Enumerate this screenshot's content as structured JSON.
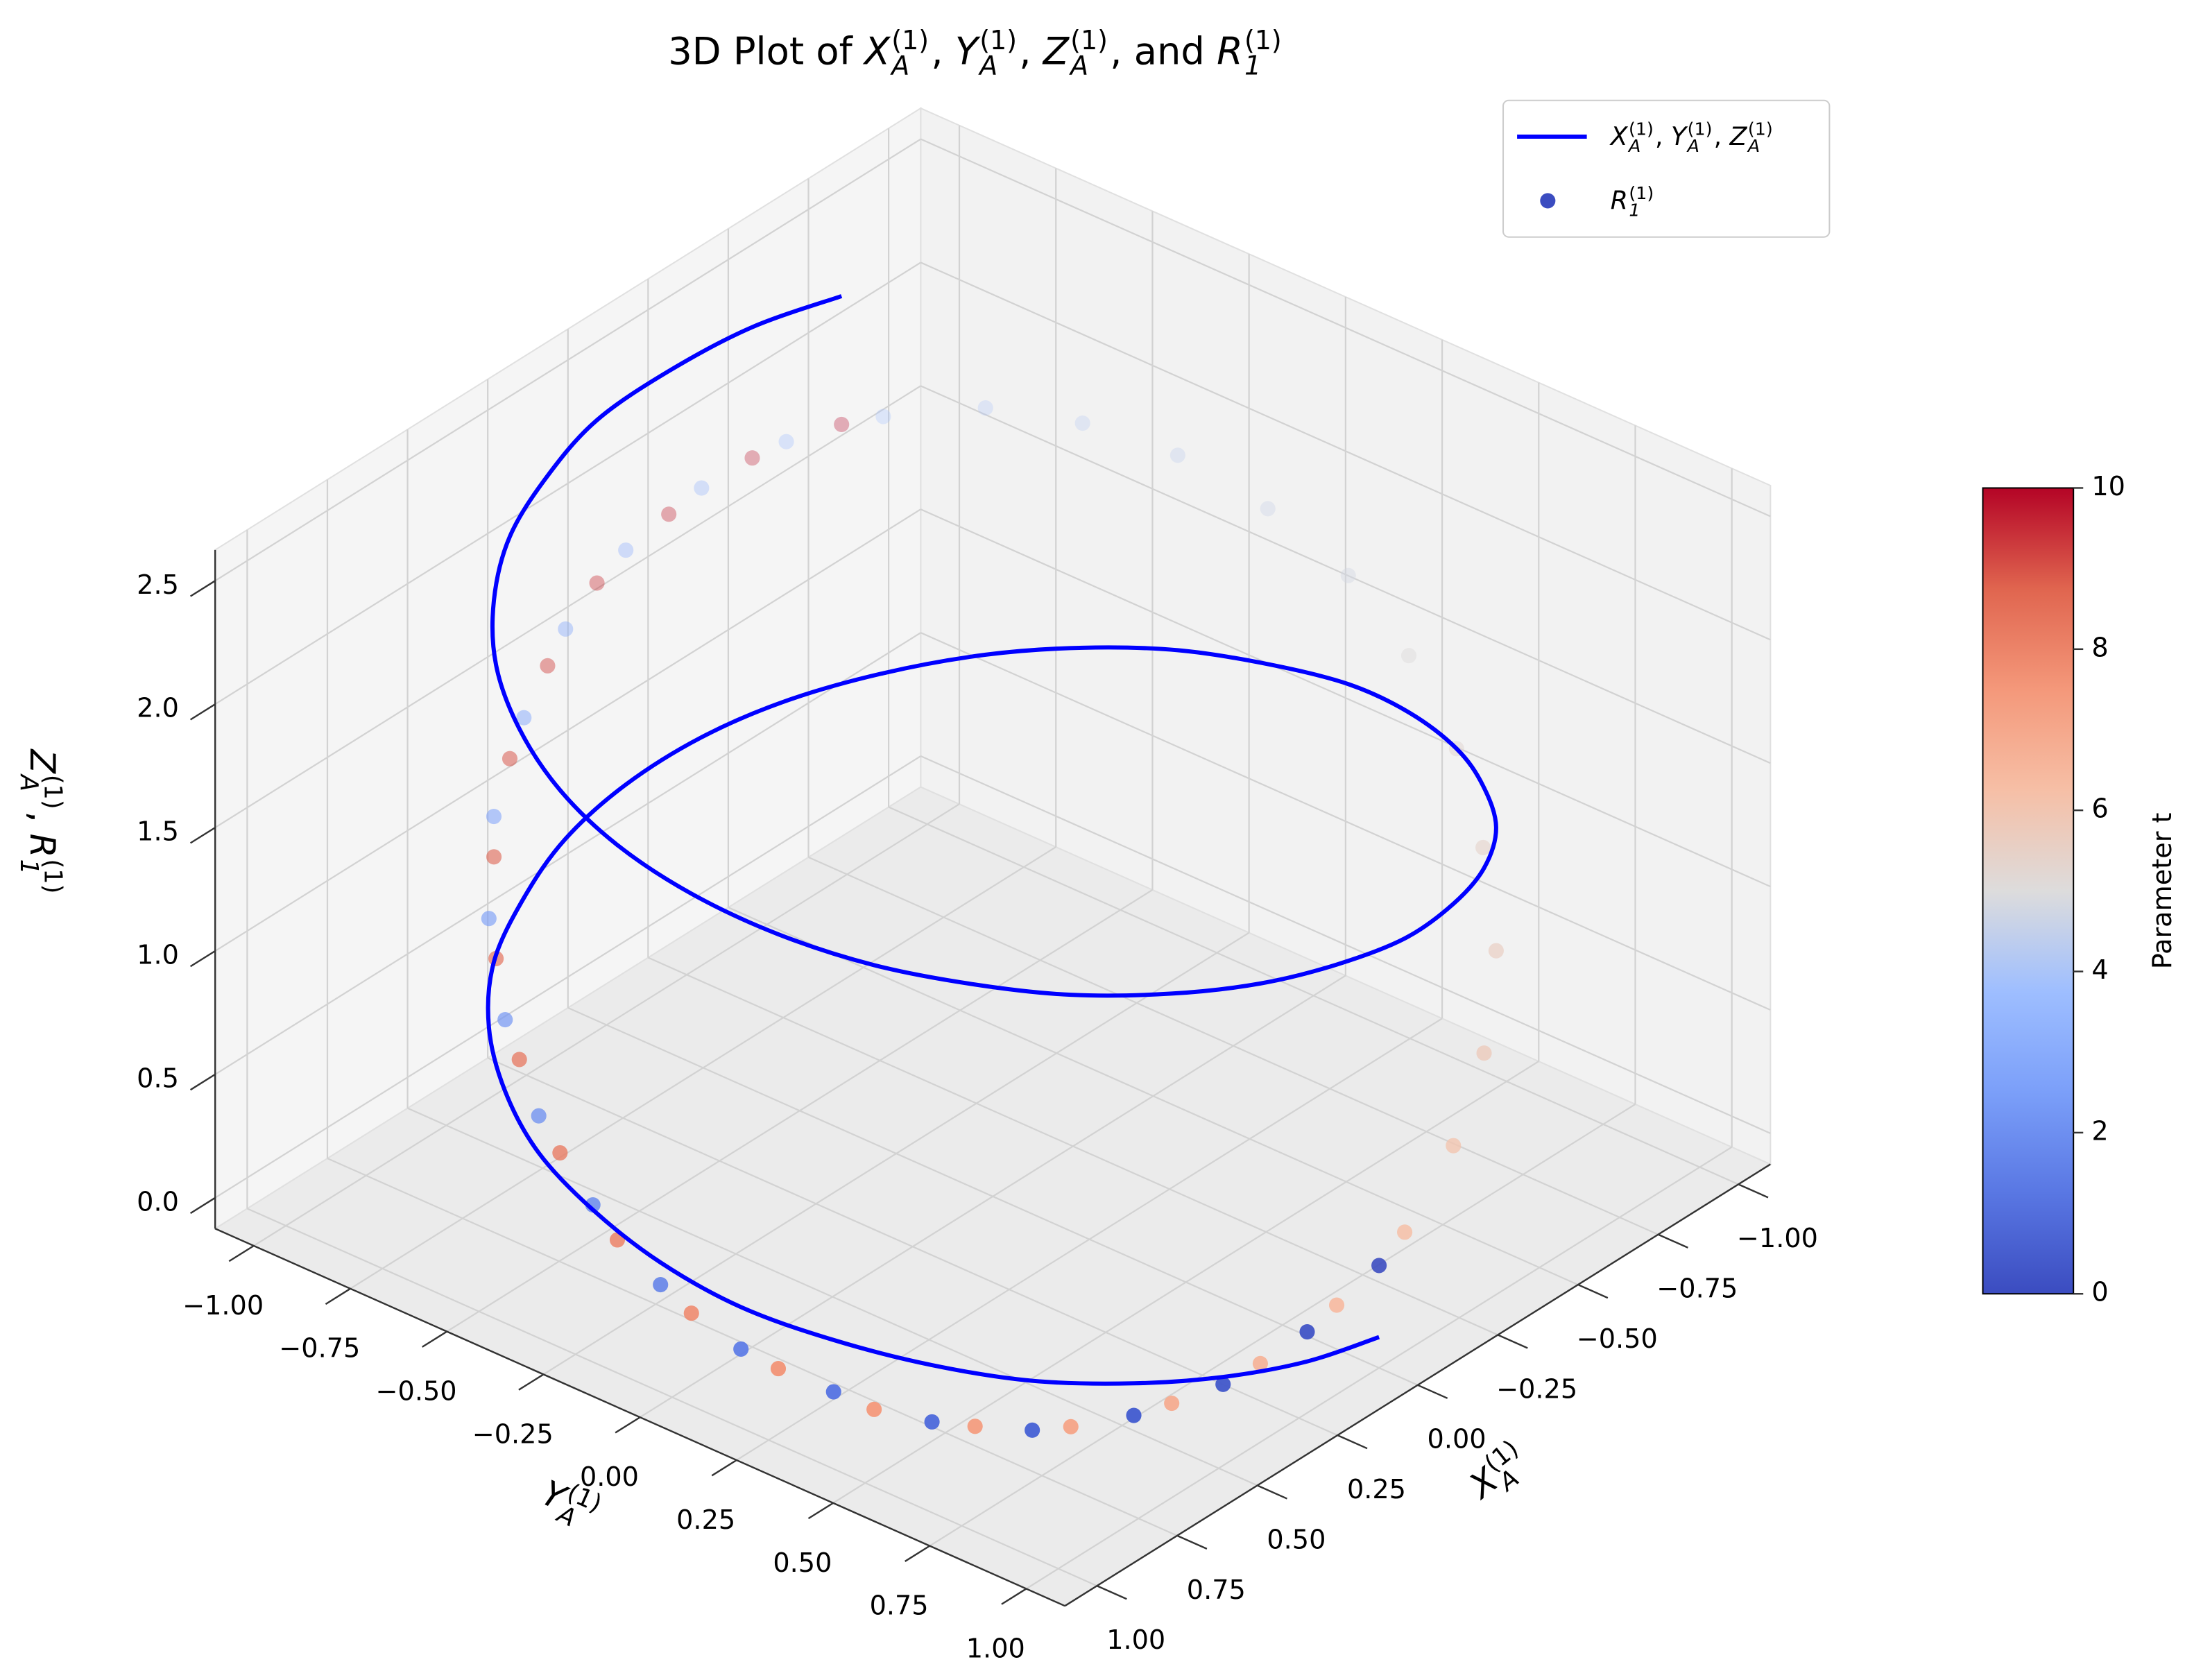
{
  "chart_data": {
    "type": "3d",
    "title": [
      "3D Plot of ",
      {
        "base": "X",
        "sub": "A",
        "sup": "(1)"
      },
      ", ",
      {
        "base": "Y",
        "sub": "A",
        "sup": "(1)"
      },
      ", ",
      {
        "base": "Z",
        "sub": "A",
        "sup": "(1)"
      },
      ", and ",
      {
        "base": "R",
        "sub": "1",
        "sup": "(1)"
      }
    ],
    "x_label": [
      {
        "base": "X",
        "sub": "A",
        "sup": "(1)"
      }
    ],
    "y_label": [
      {
        "base": "Y",
        "sub": "A",
        "sup": "(1)"
      }
    ],
    "z_label": [
      {
        "base": "Z",
        "sub": "A",
        "sup": "(1)"
      },
      ", ",
      {
        "base": "R",
        "sub": "1",
        "sup": "(1)"
      }
    ],
    "xlim": [
      -1.1,
      1.1
    ],
    "ylim": [
      -1.1,
      1.1
    ],
    "zlim": [
      -0.125,
      2.625
    ],
    "xticks": [
      {
        "value": -1,
        "label": "−1.00"
      },
      {
        "value": -0.75,
        "label": "−0.75"
      },
      {
        "value": -0.5,
        "label": "−0.50"
      },
      {
        "value": -0.25,
        "label": "−0.25"
      },
      {
        "value": 0,
        "label": "0.00"
      },
      0.25,
      {
        "value": 0.5,
        "label": "0.50"
      },
      0.75,
      {
        "value": 1,
        "label": "1.00"
      }
    ],
    "yticks": [
      {
        "value": -1,
        "label": "−1.00"
      },
      {
        "value": -0.75,
        "label": "−0.75"
      },
      {
        "value": -0.5,
        "label": "−0.50"
      },
      {
        "value": -0.25,
        "label": "−0.25"
      },
      {
        "value": 0,
        "label": "0.00"
      },
      0.25,
      {
        "value": 0.5,
        "label": "0.50"
      },
      0.75,
      {
        "value": 1,
        "label": "1.00"
      }
    ],
    "zticks": [
      {
        "value": 0,
        "label": "0.0"
      },
      0.5,
      {
        "value": 1,
        "label": "1.0"
      },
      1.5,
      {
        "value": 2,
        "label": "2.0"
      },
      2.5
    ],
    "grid": true,
    "legend": "upper right",
    "colormap": [
      "#3b4cc0",
      "#5977e3",
      "#7b9ff9",
      "#9ebeff",
      "#dddcdc",
      "#f6bfa6",
      "#f4987a",
      "#e0654f",
      "#b40426"
    ],
    "clim": [
      0,
      10
    ],
    "cticks": [
      0,
      2,
      4,
      6,
      8,
      10
    ],
    "colorbar_label": "Parameter t",
    "series": [
      {
        "type": "line",
        "name": [
          {
            "base": "X",
            "sub": "A",
            "sup": "(1)"
          },
          ", ",
          {
            "base": "Y",
            "sub": "A",
            "sup": "(1)"
          },
          ", ",
          {
            "base": "Z",
            "sub": "A",
            "sup": "(1)"
          }
        ],
        "color": "#0000ff",
        "x": [
          0,
          0.2,
          0.39,
          0.56,
          0.72,
          0.84,
          0.93,
          0.99,
          1.0,
          0.97,
          0.91,
          0.81,
          0.68,
          0.52,
          0.33,
          0.14,
          -0.06,
          -0.26,
          -0.44,
          -0.61,
          -0.76,
          -0.87,
          -0.95,
          -0.99,
          -1.0,
          -0.96,
          -0.88,
          -0.77,
          -0.63,
          -0.46,
          -0.28,
          -0.08,
          0.12,
          0.31,
          0.49,
          0.66,
          0.79,
          0.9,
          0.97,
          1.0,
          0.99,
          0.94,
          0.85,
          0.73,
          0.58,
          0.41,
          0.22,
          0.03,
          -0.17,
          -0.37,
          -0.54
        ],
        "y": [
          1,
          0.98,
          0.92,
          0.83,
          0.7,
          0.54,
          0.36,
          0.17,
          -0.03,
          -0.23,
          -0.42,
          -0.59,
          -0.74,
          -0.86,
          -0.94,
          -0.99,
          -1.0,
          -0.97,
          -0.9,
          -0.79,
          -0.65,
          -0.49,
          -0.31,
          -0.11,
          0.09,
          0.28,
          0.47,
          0.63,
          0.78,
          0.89,
          0.96,
          1.0,
          0.99,
          0.95,
          0.87,
          0.75,
          0.61,
          0.44,
          0.25,
          0.05,
          -0.15,
          -0.34,
          -0.52,
          -0.68,
          -0.81,
          -0.91,
          -0.97,
          -1.0,
          -0.98,
          -0.93,
          -0.84
        ],
        "z": [
          0,
          0.05,
          0.1,
          0.15,
          0.2,
          0.25,
          0.3,
          0.35,
          0.4,
          0.45,
          0.5,
          0.55,
          0.6,
          0.65,
          0.7,
          0.75,
          0.8,
          0.85,
          0.9,
          0.95,
          1,
          1.05,
          1.1,
          1.15,
          1.2,
          1.25,
          1.3,
          1.35,
          1.4,
          1.45,
          1.5,
          1.55,
          1.6,
          1.65,
          1.7,
          1.75,
          1.8,
          1.85,
          1.9,
          1.95,
          2,
          2.05,
          2.1,
          2.15,
          2.2,
          2.25,
          2.3,
          2.35,
          2.4,
          2.45,
          2.5
        ]
      },
      {
        "type": "scatter",
        "name": [
          {
            "base": "R",
            "sub": "1",
            "sup": "(1)"
          }
        ],
        "x": [
          0,
          0.2,
          0.39,
          0.56,
          0.72,
          0.84,
          0.93,
          0.99,
          1.0,
          0.97,
          0.91,
          0.81,
          0.68,
          0.52,
          0.33,
          0.14,
          -0.06,
          -0.26,
          -0.44,
          -0.61,
          -0.76,
          -0.87,
          -0.95,
          -0.99,
          -1.0,
          -0.96,
          -0.88,
          -0.77,
          -0.63,
          -0.46,
          -0.28,
          -0.08,
          0.12,
          0.31,
          0.49,
          0.66,
          0.79,
          0.9,
          0.97,
          1.0,
          0.99,
          0.94,
          0.85,
          0.73,
          0.58,
          0.41,
          0.22,
          0.03,
          -0.17,
          -0.37,
          -0.54
        ],
        "y": [
          1,
          0.98,
          0.92,
          0.83,
          0.7,
          0.54,
          0.36,
          0.17,
          -0.03,
          -0.23,
          -0.42,
          -0.59,
          -0.74,
          -0.86,
          -0.94,
          -0.99,
          -1.0,
          -0.97,
          -0.9,
          -0.79,
          -0.65,
          -0.49,
          -0.31,
          -0.11,
          0.09,
          0.28,
          0.47,
          0.63,
          0.78,
          0.89,
          0.96,
          1.0,
          0.99,
          0.95,
          0.87,
          0.75,
          0.61,
          0.44,
          0.25,
          0.05,
          -0.15,
          -0.34,
          -0.52,
          -0.68,
          -0.81,
          -0.91,
          -0.97,
          -1.0,
          -0.98,
          -0.93,
          -0.84
        ],
        "z": [
          0.29,
          0.17,
          0.07,
          0.02,
          0.0,
          0.02,
          0.09,
          0.18,
          0.31,
          0.47,
          0.65,
          0.84,
          1.04,
          1.24,
          1.43,
          1.6,
          1.75,
          1.86,
          1.95,
          1.99,
          2.0,
          1.96,
          1.89,
          1.78,
          1.64,
          1.48,
          1.3,
          1.1,
          0.9,
          0.7,
          0.52,
          0.36,
          0.22,
          0.11,
          0.04,
          0.0,
          0.01,
          0.05,
          0.14,
          0.25,
          0.4,
          0.58,
          0.76,
          0.96,
          1.16,
          1.35,
          1.53,
          1.69,
          1.82,
          1.92,
          1.98
        ],
        "c": [
          0,
          0.2,
          0.4,
          0.6,
          0.8,
          1,
          1.2,
          1.4,
          1.6,
          1.8,
          2,
          2.2,
          2.4,
          2.6,
          2.8,
          3,
          3.2,
          3.4,
          3.6,
          3.8,
          4,
          4.2,
          4.4,
          4.6,
          4.8,
          5,
          5.2,
          5.4,
          5.6,
          5.8,
          6,
          6.2,
          6.4,
          6.6,
          6.8,
          7,
          7.2,
          7.4,
          7.6,
          7.8,
          8,
          8.2,
          8.4,
          8.6,
          8.8,
          9,
          9.2,
          9.4,
          9.6,
          9.8,
          10
        ]
      }
    ]
  }
}
